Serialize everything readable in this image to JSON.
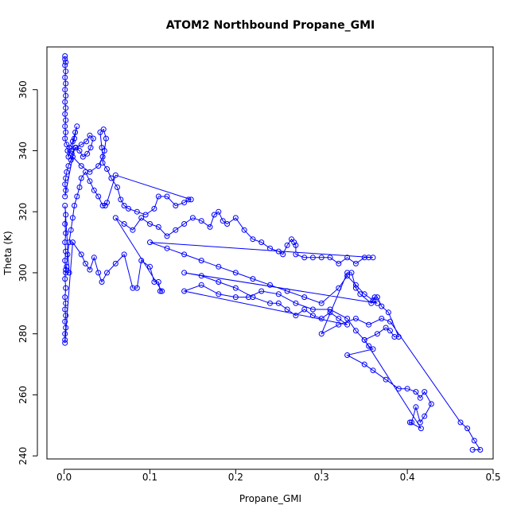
{
  "chart_data": {
    "type": "line",
    "title": "ATOM2 Northbound Propane_GMI",
    "xlabel": "Propane_GMI",
    "ylabel": "Theta (K)",
    "xlim": [
      -0.02,
      0.5
    ],
    "ylim": [
      239,
      374
    ],
    "xticks": [
      0.0,
      0.1,
      0.2,
      0.3,
      0.4,
      0.5
    ],
    "xtick_labels": [
      "0.0",
      "0.1",
      "0.2",
      "0.3",
      "0.4",
      "0.5"
    ],
    "yticks": [
      240,
      260,
      280,
      300,
      320,
      340,
      360
    ],
    "ytick_labels": [
      "240",
      "260",
      "280",
      "300",
      "320",
      "340",
      "360"
    ],
    "grid": false,
    "marker": "open-circle",
    "series": [
      {
        "color": "#0000ff",
        "points": [
          [
            0.001,
            371
          ],
          [
            0.001,
            370
          ],
          [
            0.002,
            369
          ],
          [
            0.001,
            368
          ],
          [
            0.002,
            366
          ],
          [
            0.001,
            364
          ],
          [
            0.002,
            362
          ],
          [
            0.001,
            360
          ],
          [
            0.002,
            358
          ],
          [
            0.001,
            356
          ],
          [
            0.002,
            354
          ],
          [
            0.001,
            352
          ],
          [
            0.002,
            350
          ],
          [
            0.001,
            348
          ],
          [
            0.002,
            346
          ],
          [
            0.001,
            344
          ],
          [
            0.003,
            342
          ],
          [
            0.006,
            341
          ],
          [
            0.01,
            343
          ],
          [
            0.013,
            346
          ],
          [
            0.015,
            348
          ],
          [
            0.012,
            344
          ],
          [
            0.008,
            340
          ],
          [
            0.005,
            338
          ],
          [
            0.004,
            340
          ],
          [
            0.009,
            339
          ],
          [
            0.014,
            341
          ],
          [
            0.02,
            342
          ],
          [
            0.026,
            343
          ],
          [
            0.03,
            345
          ],
          [
            0.034,
            344
          ],
          [
            0.031,
            341
          ],
          [
            0.027,
            339
          ],
          [
            0.022,
            338
          ],
          [
            0.018,
            340
          ],
          [
            0.013,
            341
          ],
          [
            0.008,
            337
          ],
          [
            0.005,
            335
          ],
          [
            0.003,
            333
          ],
          [
            0.002,
            331
          ],
          [
            0.001,
            329
          ],
          [
            0.002,
            327
          ],
          [
            0.001,
            325
          ],
          [
            0.01,
            338
          ],
          [
            0.02,
            335
          ],
          [
            0.03,
            333
          ],
          [
            0.04,
            335
          ],
          [
            0.045,
            338
          ],
          [
            0.044,
            341
          ],
          [
            0.042,
            346
          ],
          [
            0.046,
            347
          ],
          [
            0.049,
            344
          ],
          [
            0.047,
            340
          ],
          [
            0.045,
            336
          ],
          [
            0.05,
            334
          ],
          [
            0.055,
            331
          ],
          [
            0.062,
            328
          ],
          [
            0.066,
            324
          ],
          [
            0.07,
            322
          ],
          [
            0.075,
            321
          ],
          [
            0.085,
            320
          ],
          [
            0.095,
            319
          ],
          [
            0.105,
            321
          ],
          [
            0.11,
            325
          ],
          [
            0.12,
            325
          ],
          [
            0.13,
            322
          ],
          [
            0.14,
            323
          ],
          [
            0.145,
            324
          ],
          [
            0.148,
            324
          ],
          [
            0.06,
            332
          ],
          [
            0.05,
            323
          ],
          [
            0.048,
            322
          ],
          [
            0.045,
            322
          ],
          [
            0.04,
            325
          ],
          [
            0.035,
            327
          ],
          [
            0.03,
            330
          ],
          [
            0.025,
            333
          ],
          [
            0.02,
            331
          ],
          [
            0.018,
            328
          ],
          [
            0.015,
            325
          ],
          [
            0.012,
            322
          ],
          [
            0.01,
            318
          ],
          [
            0.008,
            314
          ],
          [
            0.006,
            310
          ],
          [
            0.004,
            306
          ],
          [
            0.003,
            302
          ],
          [
            0.002,
            300
          ],
          [
            0.006,
            300
          ],
          [
            0.001,
            322
          ],
          [
            0.002,
            319
          ],
          [
            0.001,
            316
          ],
          [
            0.002,
            313
          ],
          [
            0.001,
            310
          ],
          [
            0.002,
            307
          ],
          [
            0.001,
            304
          ],
          [
            0.002,
            301
          ],
          [
            0.001,
            298
          ],
          [
            0.002,
            295
          ],
          [
            0.001,
            292
          ],
          [
            0.002,
            290
          ],
          [
            0.001,
            288
          ],
          [
            0.002,
            286
          ],
          [
            0.001,
            284
          ],
          [
            0.002,
            282
          ],
          [
            0.001,
            280
          ],
          [
            0.001,
            278
          ],
          [
            0.001,
            277
          ],
          [
            0.01,
            310
          ],
          [
            0.02,
            306
          ],
          [
            0.025,
            303
          ],
          [
            0.03,
            301
          ],
          [
            0.035,
            305
          ],
          [
            0.04,
            300
          ],
          [
            0.044,
            297
          ],
          [
            0.05,
            300
          ],
          [
            0.06,
            303
          ],
          [
            0.07,
            306
          ],
          [
            0.08,
            295
          ],
          [
            0.085,
            295
          ],
          [
            0.09,
            304
          ],
          [
            0.1,
            302
          ],
          [
            0.105,
            297
          ],
          [
            0.11,
            297
          ],
          [
            0.112,
            294
          ],
          [
            0.114,
            294
          ],
          [
            0.06,
            318
          ],
          [
            0.07,
            316
          ],
          [
            0.08,
            314
          ],
          [
            0.09,
            318
          ],
          [
            0.1,
            316
          ],
          [
            0.11,
            315
          ],
          [
            0.12,
            312
          ],
          [
            0.13,
            314
          ],
          [
            0.14,
            316
          ],
          [
            0.15,
            318
          ],
          [
            0.16,
            317
          ],
          [
            0.17,
            315
          ],
          [
            0.175,
            319
          ],
          [
            0.18,
            320
          ],
          [
            0.185,
            317
          ],
          [
            0.19,
            316
          ],
          [
            0.2,
            318
          ],
          [
            0.21,
            314
          ],
          [
            0.22,
            311
          ],
          [
            0.23,
            310
          ],
          [
            0.24,
            308
          ],
          [
            0.25,
            307
          ],
          [
            0.255,
            306
          ],
          [
            0.26,
            309
          ],
          [
            0.265,
            311
          ],
          [
            0.268,
            310
          ],
          [
            0.27,
            309
          ],
          [
            0.27,
            306
          ],
          [
            0.28,
            305
          ],
          [
            0.29,
            305
          ],
          [
            0.3,
            305
          ],
          [
            0.31,
            305
          ],
          [
            0.32,
            303
          ],
          [
            0.33,
            305
          ],
          [
            0.34,
            303
          ],
          [
            0.35,
            305
          ],
          [
            0.355,
            305
          ],
          [
            0.36,
            305
          ],
          [
            0.1,
            310
          ],
          [
            0.12,
            308
          ],
          [
            0.14,
            306
          ],
          [
            0.16,
            304
          ],
          [
            0.18,
            302
          ],
          [
            0.2,
            300
          ],
          [
            0.22,
            298
          ],
          [
            0.24,
            296
          ],
          [
            0.26,
            294
          ],
          [
            0.28,
            292
          ],
          [
            0.3,
            290
          ],
          [
            0.32,
            295
          ],
          [
            0.33,
            299
          ],
          [
            0.34,
            296
          ],
          [
            0.35,
            293
          ],
          [
            0.36,
            291
          ],
          [
            0.365,
            290
          ],
          [
            0.14,
            300
          ],
          [
            0.16,
            299
          ],
          [
            0.18,
            297
          ],
          [
            0.2,
            295
          ],
          [
            0.22,
            292
          ],
          [
            0.24,
            290
          ],
          [
            0.25,
            290
          ],
          [
            0.26,
            288
          ],
          [
            0.27,
            286
          ],
          [
            0.28,
            288
          ],
          [
            0.29,
            286
          ],
          [
            0.3,
            285
          ],
          [
            0.31,
            287
          ],
          [
            0.32,
            285
          ],
          [
            0.33,
            283
          ],
          [
            0.14,
            294
          ],
          [
            0.16,
            296
          ],
          [
            0.18,
            293
          ],
          [
            0.2,
            292
          ],
          [
            0.215,
            292
          ],
          [
            0.23,
            294
          ],
          [
            0.25,
            293
          ],
          [
            0.27,
            290
          ],
          [
            0.29,
            288
          ],
          [
            0.31,
            288
          ],
          [
            0.33,
            285
          ],
          [
            0.34,
            281
          ],
          [
            0.35,
            278
          ],
          [
            0.355,
            276
          ],
          [
            0.36,
            275
          ],
          [
            0.33,
            273
          ],
          [
            0.35,
            270
          ],
          [
            0.36,
            268
          ],
          [
            0.375,
            265
          ],
          [
            0.39,
            262
          ],
          [
            0.4,
            262
          ],
          [
            0.41,
            261
          ],
          [
            0.415,
            259
          ],
          [
            0.42,
            261
          ],
          [
            0.428,
            257
          ],
          [
            0.42,
            253
          ],
          [
            0.415,
            251
          ],
          [
            0.41,
            256
          ],
          [
            0.405,
            251
          ],
          [
            0.403,
            251
          ],
          [
            0.416,
            249
          ],
          [
            0.35,
            278
          ],
          [
            0.365,
            280
          ],
          [
            0.375,
            282
          ],
          [
            0.38,
            281
          ],
          [
            0.385,
            279
          ],
          [
            0.39,
            279
          ],
          [
            0.378,
            287
          ],
          [
            0.37,
            289
          ],
          [
            0.365,
            292
          ],
          [
            0.362,
            292
          ],
          [
            0.358,
            290
          ],
          [
            0.345,
            293
          ],
          [
            0.34,
            295
          ],
          [
            0.335,
            300
          ],
          [
            0.33,
            300
          ],
          [
            0.3,
            280
          ],
          [
            0.32,
            283
          ],
          [
            0.34,
            285
          ],
          [
            0.355,
            283
          ],
          [
            0.37,
            285
          ],
          [
            0.38,
            284
          ],
          [
            0.462,
            251
          ],
          [
            0.47,
            249
          ],
          [
            0.478,
            245
          ],
          [
            0.485,
            242
          ],
          [
            0.476,
            242
          ]
        ]
      }
    ]
  }
}
